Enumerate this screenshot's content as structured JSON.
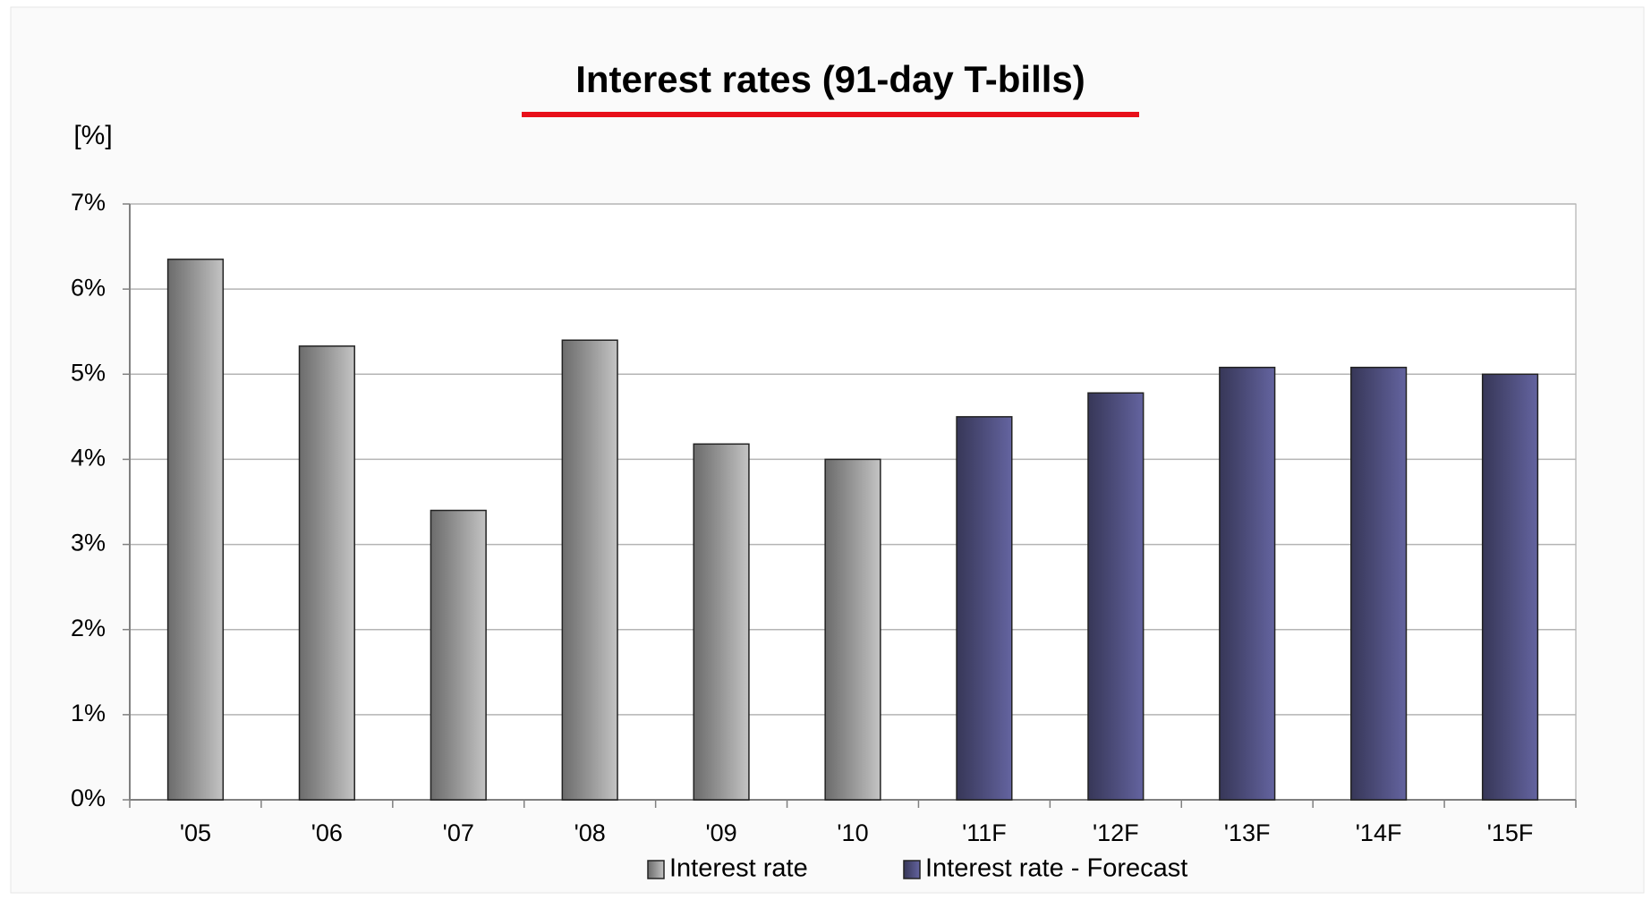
{
  "chart_data": {
    "type": "bar",
    "title": "Interest rates (91-day T-bills)",
    "y_label": "[%]",
    "categories": [
      "'05",
      "'06",
      "'07",
      "'08",
      "'09",
      "'10",
      "'11F",
      "'12F",
      "'13F",
      "'14F",
      "'15F"
    ],
    "series": [
      {
        "name": "Interest rate",
        "color": "#c4c4c4",
        "values": [
          6.35,
          5.33,
          3.4,
          5.4,
          4.18,
          4.0,
          null,
          null,
          null,
          null,
          null
        ]
      },
      {
        "name": "Interest rate - Forecast",
        "color": "#6464a0",
        "values": [
          null,
          null,
          null,
          null,
          null,
          null,
          4.5,
          4.78,
          5.08,
          5.08,
          5.0
        ]
      }
    ],
    "ylim": [
      0,
      7
    ],
    "yticks": [
      {
        "value": 0,
        "label": "0%"
      },
      {
        "value": 1,
        "label": "1%"
      },
      {
        "value": 2,
        "label": "2%"
      },
      {
        "value": 3,
        "label": "3%"
      },
      {
        "value": 4,
        "label": "4%"
      },
      {
        "value": 5,
        "label": "5%"
      },
      {
        "value": 6,
        "label": "6%"
      },
      {
        "value": 7,
        "label": "7%"
      }
    ],
    "grid": true,
    "legend": "bottom"
  }
}
